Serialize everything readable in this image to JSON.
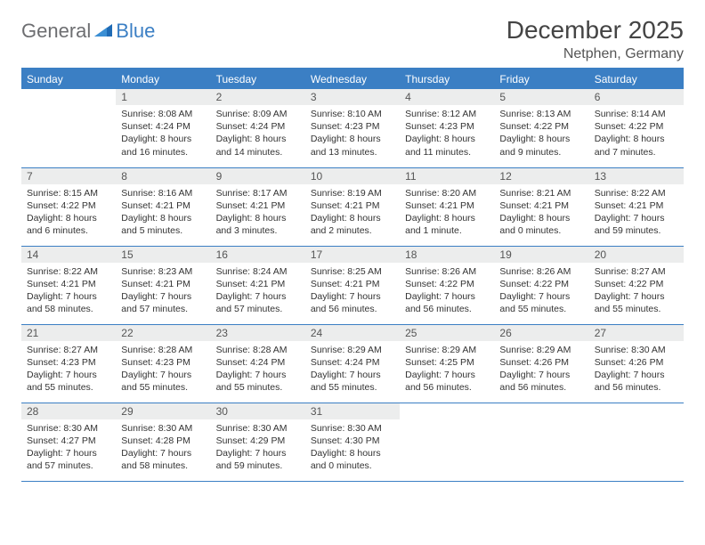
{
  "logo": {
    "general": "General",
    "blue": "Blue"
  },
  "title": "December 2025",
  "location": "Netphen, Germany",
  "colors": {
    "brand_blue": "#3b7fc4",
    "header_bg": "#3b7fc4",
    "header_text": "#ffffff",
    "daynum_bg": "#eceded",
    "border": "#3b7fc4",
    "text": "#333333",
    "logo_gray": "#6d6e71"
  },
  "typography": {
    "title_fontsize": 28,
    "location_fontsize": 16,
    "header_fontsize": 12,
    "cell_fontsize": 10.5
  },
  "weekdays": [
    "Sunday",
    "Monday",
    "Tuesday",
    "Wednesday",
    "Thursday",
    "Friday",
    "Saturday"
  ],
  "weeks": [
    [
      {
        "num": "",
        "sunrise": "",
        "sunset": "",
        "daylight": ""
      },
      {
        "num": "1",
        "sunrise": "Sunrise: 8:08 AM",
        "sunset": "Sunset: 4:24 PM",
        "daylight": "Daylight: 8 hours and 16 minutes."
      },
      {
        "num": "2",
        "sunrise": "Sunrise: 8:09 AM",
        "sunset": "Sunset: 4:24 PM",
        "daylight": "Daylight: 8 hours and 14 minutes."
      },
      {
        "num": "3",
        "sunrise": "Sunrise: 8:10 AM",
        "sunset": "Sunset: 4:23 PM",
        "daylight": "Daylight: 8 hours and 13 minutes."
      },
      {
        "num": "4",
        "sunrise": "Sunrise: 8:12 AM",
        "sunset": "Sunset: 4:23 PM",
        "daylight": "Daylight: 8 hours and 11 minutes."
      },
      {
        "num": "5",
        "sunrise": "Sunrise: 8:13 AM",
        "sunset": "Sunset: 4:22 PM",
        "daylight": "Daylight: 8 hours and 9 minutes."
      },
      {
        "num": "6",
        "sunrise": "Sunrise: 8:14 AM",
        "sunset": "Sunset: 4:22 PM",
        "daylight": "Daylight: 8 hours and 7 minutes."
      }
    ],
    [
      {
        "num": "7",
        "sunrise": "Sunrise: 8:15 AM",
        "sunset": "Sunset: 4:22 PM",
        "daylight": "Daylight: 8 hours and 6 minutes."
      },
      {
        "num": "8",
        "sunrise": "Sunrise: 8:16 AM",
        "sunset": "Sunset: 4:21 PM",
        "daylight": "Daylight: 8 hours and 5 minutes."
      },
      {
        "num": "9",
        "sunrise": "Sunrise: 8:17 AM",
        "sunset": "Sunset: 4:21 PM",
        "daylight": "Daylight: 8 hours and 3 minutes."
      },
      {
        "num": "10",
        "sunrise": "Sunrise: 8:19 AM",
        "sunset": "Sunset: 4:21 PM",
        "daylight": "Daylight: 8 hours and 2 minutes."
      },
      {
        "num": "11",
        "sunrise": "Sunrise: 8:20 AM",
        "sunset": "Sunset: 4:21 PM",
        "daylight": "Daylight: 8 hours and 1 minute."
      },
      {
        "num": "12",
        "sunrise": "Sunrise: 8:21 AM",
        "sunset": "Sunset: 4:21 PM",
        "daylight": "Daylight: 8 hours and 0 minutes."
      },
      {
        "num": "13",
        "sunrise": "Sunrise: 8:22 AM",
        "sunset": "Sunset: 4:21 PM",
        "daylight": "Daylight: 7 hours and 59 minutes."
      }
    ],
    [
      {
        "num": "14",
        "sunrise": "Sunrise: 8:22 AM",
        "sunset": "Sunset: 4:21 PM",
        "daylight": "Daylight: 7 hours and 58 minutes."
      },
      {
        "num": "15",
        "sunrise": "Sunrise: 8:23 AM",
        "sunset": "Sunset: 4:21 PM",
        "daylight": "Daylight: 7 hours and 57 minutes."
      },
      {
        "num": "16",
        "sunrise": "Sunrise: 8:24 AM",
        "sunset": "Sunset: 4:21 PM",
        "daylight": "Daylight: 7 hours and 57 minutes."
      },
      {
        "num": "17",
        "sunrise": "Sunrise: 8:25 AM",
        "sunset": "Sunset: 4:21 PM",
        "daylight": "Daylight: 7 hours and 56 minutes."
      },
      {
        "num": "18",
        "sunrise": "Sunrise: 8:26 AM",
        "sunset": "Sunset: 4:22 PM",
        "daylight": "Daylight: 7 hours and 56 minutes."
      },
      {
        "num": "19",
        "sunrise": "Sunrise: 8:26 AM",
        "sunset": "Sunset: 4:22 PM",
        "daylight": "Daylight: 7 hours and 55 minutes."
      },
      {
        "num": "20",
        "sunrise": "Sunrise: 8:27 AM",
        "sunset": "Sunset: 4:22 PM",
        "daylight": "Daylight: 7 hours and 55 minutes."
      }
    ],
    [
      {
        "num": "21",
        "sunrise": "Sunrise: 8:27 AM",
        "sunset": "Sunset: 4:23 PM",
        "daylight": "Daylight: 7 hours and 55 minutes."
      },
      {
        "num": "22",
        "sunrise": "Sunrise: 8:28 AM",
        "sunset": "Sunset: 4:23 PM",
        "daylight": "Daylight: 7 hours and 55 minutes."
      },
      {
        "num": "23",
        "sunrise": "Sunrise: 8:28 AM",
        "sunset": "Sunset: 4:24 PM",
        "daylight": "Daylight: 7 hours and 55 minutes."
      },
      {
        "num": "24",
        "sunrise": "Sunrise: 8:29 AM",
        "sunset": "Sunset: 4:24 PM",
        "daylight": "Daylight: 7 hours and 55 minutes."
      },
      {
        "num": "25",
        "sunrise": "Sunrise: 8:29 AM",
        "sunset": "Sunset: 4:25 PM",
        "daylight": "Daylight: 7 hours and 56 minutes."
      },
      {
        "num": "26",
        "sunrise": "Sunrise: 8:29 AM",
        "sunset": "Sunset: 4:26 PM",
        "daylight": "Daylight: 7 hours and 56 minutes."
      },
      {
        "num": "27",
        "sunrise": "Sunrise: 8:30 AM",
        "sunset": "Sunset: 4:26 PM",
        "daylight": "Daylight: 7 hours and 56 minutes."
      }
    ],
    [
      {
        "num": "28",
        "sunrise": "Sunrise: 8:30 AM",
        "sunset": "Sunset: 4:27 PM",
        "daylight": "Daylight: 7 hours and 57 minutes."
      },
      {
        "num": "29",
        "sunrise": "Sunrise: 8:30 AM",
        "sunset": "Sunset: 4:28 PM",
        "daylight": "Daylight: 7 hours and 58 minutes."
      },
      {
        "num": "30",
        "sunrise": "Sunrise: 8:30 AM",
        "sunset": "Sunset: 4:29 PM",
        "daylight": "Daylight: 7 hours and 59 minutes."
      },
      {
        "num": "31",
        "sunrise": "Sunrise: 8:30 AM",
        "sunset": "Sunset: 4:30 PM",
        "daylight": "Daylight: 8 hours and 0 minutes."
      },
      {
        "num": "",
        "sunrise": "",
        "sunset": "",
        "daylight": ""
      },
      {
        "num": "",
        "sunrise": "",
        "sunset": "",
        "daylight": ""
      },
      {
        "num": "",
        "sunrise": "",
        "sunset": "",
        "daylight": ""
      }
    ]
  ]
}
